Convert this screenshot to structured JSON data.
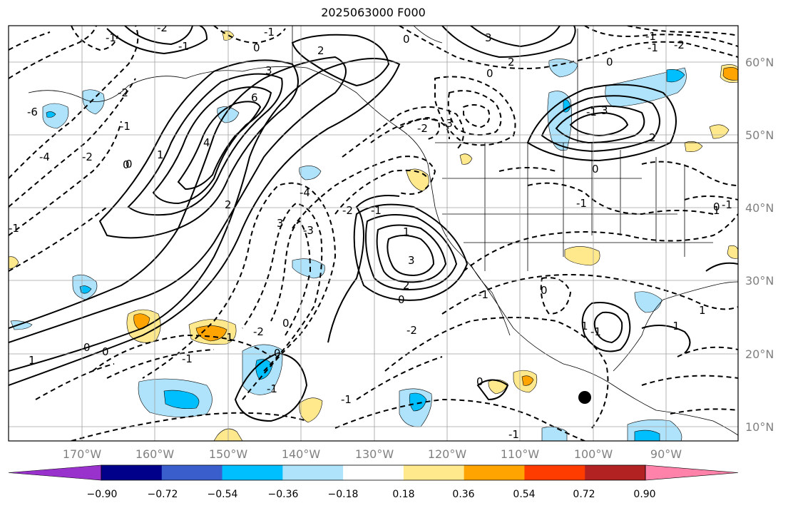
{
  "title": "2025063000 F000",
  "colors": {
    "frame": "#000000",
    "grid": "#a0a0a0",
    "coast": "#000000",
    "neg_strong": "#00bfff",
    "neg_weak": "#aee3fb",
    "pos_weak": "#ffe98c",
    "pos_strong": "#ffa400",
    "pos_very_strong": "#ff3c00"
  },
  "lat_labels": [
    "60°N",
    "50°N",
    "40°N",
    "30°N",
    "20°N",
    "10°N"
  ],
  "lon_labels": [
    "170°W",
    "160°W",
    "150°W",
    "140°W",
    "130°W",
    "120°W",
    "110°W",
    "100°W",
    "90°W"
  ],
  "colorbar": {
    "colors": [
      "#9932cc",
      "#00008b",
      "#3a5fcd",
      "#00bfff",
      "#aee3fb",
      "#ffffff",
      "#ffe98c",
      "#ffa400",
      "#ff3c00",
      "#b22222",
      "#ff82ab"
    ],
    "tick_labels": [
      "−0.90",
      "−0.72",
      "−0.54",
      "−0.36",
      "−0.18",
      "0.18",
      "0.36",
      "0.54",
      "0.72",
      "0.90"
    ]
  },
  "contour_labels": [
    "1",
    "2",
    "3",
    "0",
    "6",
    "4",
    "2",
    "1",
    "0",
    "-2",
    "-6",
    "-4",
    "-2",
    "-1",
    "0",
    "-1",
    "3",
    "-3",
    "-4",
    "-2",
    "-1",
    "0",
    "1",
    "2",
    "3",
    "0",
    "-1",
    "-2",
    "-1",
    "0",
    "-1",
    "0",
    "-1",
    "0",
    "-2",
    "-1",
    "0",
    "-1",
    "1",
    "-1",
    "0",
    "-1",
    "1",
    "0",
    "-1",
    "-2",
    "-3",
    "0",
    "3",
    "2",
    "-1",
    "2",
    "3",
    "0",
    "1",
    "-1",
    "-2",
    "-1",
    "0",
    "-1",
    "-2",
    "-1",
    "0",
    "-1",
    "-1"
  ],
  "marker": {
    "label": ""
  }
}
